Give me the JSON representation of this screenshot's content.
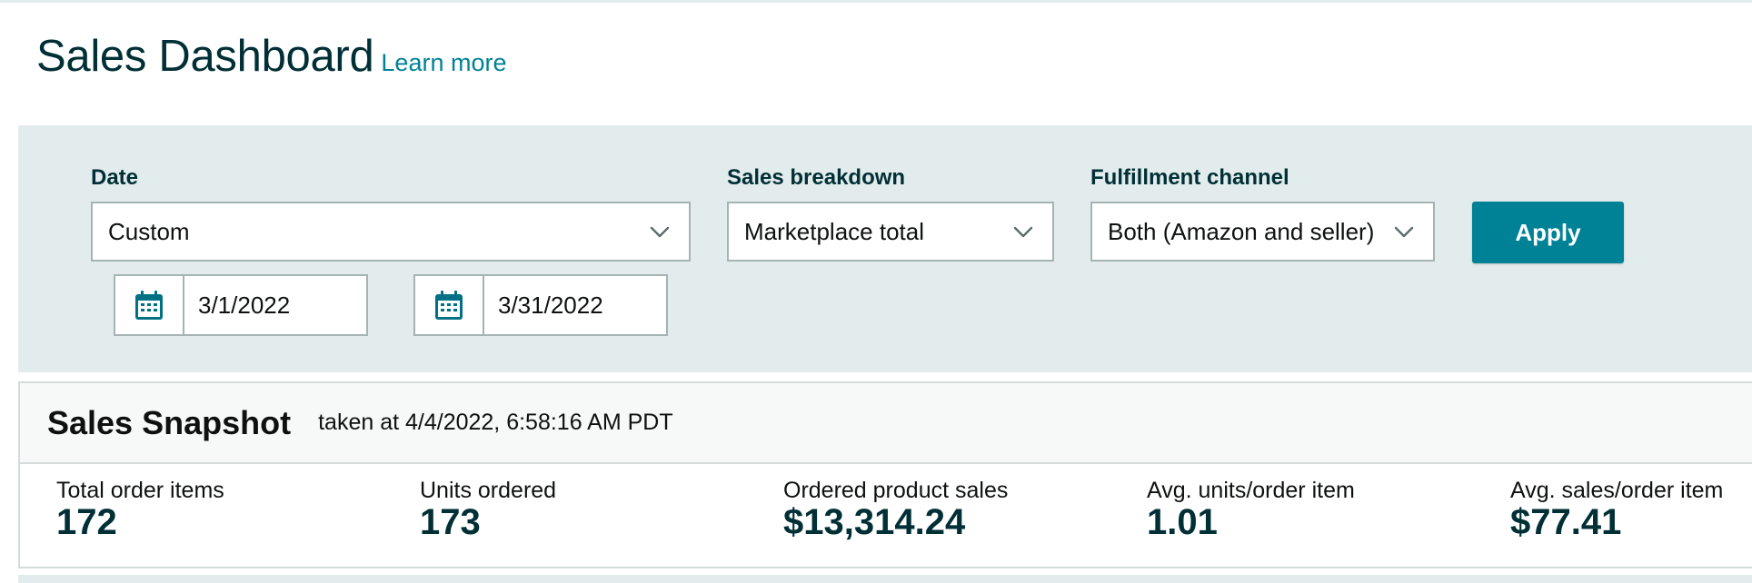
{
  "header": {
    "title": "Sales Dashboard",
    "learn_more": "Learn more"
  },
  "filters": {
    "date": {
      "label": "Date",
      "value": "Custom",
      "start_date": "3/1/2022",
      "end_date": "3/31/2022"
    },
    "sales_breakdown": {
      "label": "Sales breakdown",
      "value": "Marketplace total"
    },
    "fulfillment_channel": {
      "label": "Fulfillment channel",
      "value": "Both (Amazon and seller)"
    },
    "apply_label": "Apply"
  },
  "snapshot": {
    "title": "Sales Snapshot",
    "timestamp": "taken at 4/4/2022, 6:58:16 AM PDT",
    "metrics": [
      {
        "label": "Total order items",
        "value": "172"
      },
      {
        "label": "Units ordered",
        "value": "173"
      },
      {
        "label": "Ordered product sales",
        "value": "$13,314.24"
      },
      {
        "label": "Avg. units/order item",
        "value": "1.01"
      },
      {
        "label": "Avg. sales/order item",
        "value": "$77.41"
      }
    ]
  },
  "icons": {
    "calendar": "calendar-icon",
    "chevron": "chevron-down-icon"
  },
  "colors": {
    "accent": "#008296",
    "panel_background": "#e3ecec",
    "heading": "#002f36"
  }
}
